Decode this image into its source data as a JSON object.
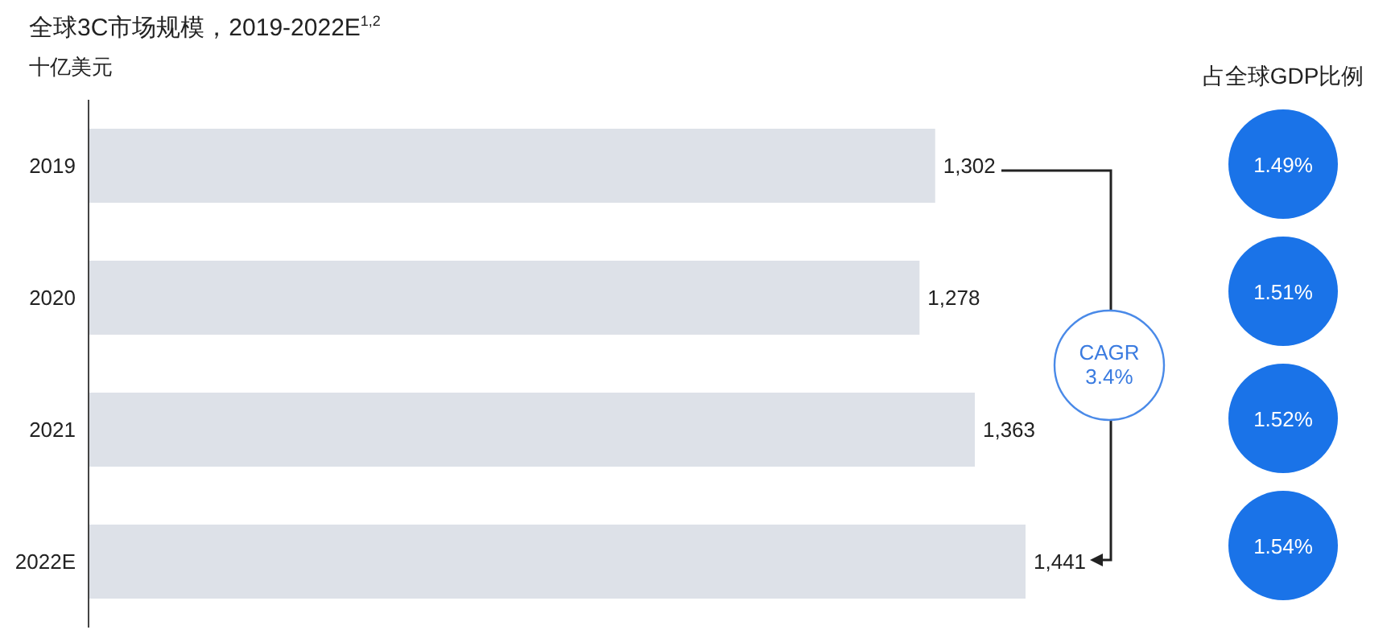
{
  "chart_data": [
    {
      "type": "bar",
      "title": "全球3C市场规模，2019-2022E$^{1,2}$",
      "subtitle": "十亿美元",
      "orientation": "horizontal",
      "categories": [
        "2019",
        "2020",
        "2021",
        "2022E"
      ],
      "values": [
        1302,
        1278,
        1363,
        1441
      ],
      "color": "#dde1e8",
      "value_labels": [
        "1,302",
        "1,278",
        "1,363",
        "1,441"
      ],
      "annotations": [
        "CAGR\n3.4%"
      ]
    },
    {
      "type": "other",
      "title": "占全球GDP比例",
      "color": "#1a73e8",
      "annotations": [
        "1.49%",
        "1.51%",
        "1.52%",
        "1.54%"
      ]
    }
  ]
}
